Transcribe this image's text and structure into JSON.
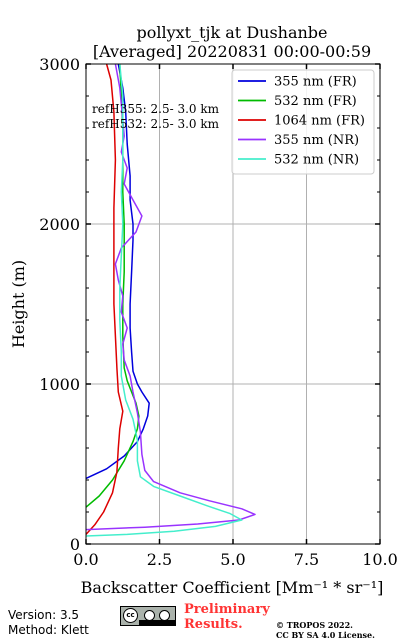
{
  "chart_data": {
    "type": "line",
    "title": "pollyxt_tjk at Dushanbe",
    "subtitle": "[Averaged] 20220831 00:00-00:59",
    "xlabel": "Backscatter Coefficient [Mm⁻¹ * sr⁻¹]",
    "ylabel": "Height (m)",
    "xlim": [
      0,
      10
    ],
    "ylim": [
      0,
      3000
    ],
    "xticks": [
      0,
      2.5,
      5,
      7.5,
      10
    ],
    "xtick_labels": [
      "0.0",
      "2.5",
      "5.0",
      "7.5",
      "10.0"
    ],
    "yticks": [
      0,
      1000,
      2000,
      3000
    ],
    "ytick_labels": [
      "0",
      "1000",
      "2000",
      "3000"
    ],
    "grid": true,
    "legend_position": "top-right",
    "annotations": [
      "refH355:  2.5- 3.0 km",
      "refH532:  2.5- 3.0 km"
    ],
    "series": [
      {
        "name": "355 nm (FR)",
        "color": "#0000dd",
        "points": [
          [
            0,
            410
          ],
          [
            0.7,
            470
          ],
          [
            1.3,
            550
          ],
          [
            1.75,
            640
          ],
          [
            1.95,
            720
          ],
          [
            2.1,
            800
          ],
          [
            2.15,
            880
          ],
          [
            1.9,
            950
          ],
          [
            1.75,
            1000
          ],
          [
            1.6,
            1080
          ],
          [
            1.55,
            1200
          ],
          [
            1.5,
            1350
          ],
          [
            1.5,
            1500
          ],
          [
            1.55,
            1700
          ],
          [
            1.6,
            1900
          ],
          [
            1.6,
            2000
          ],
          [
            1.5,
            2150
          ],
          [
            1.5,
            2300
          ],
          [
            1.4,
            2500
          ],
          [
            1.35,
            2700
          ],
          [
            1.25,
            2850
          ],
          [
            1.1,
            3000
          ]
        ]
      },
      {
        "name": "532 nm (FR)",
        "color": "#00bb00",
        "points": [
          [
            0,
            230
          ],
          [
            0.45,
            300
          ],
          [
            0.9,
            400
          ],
          [
            1.3,
            520
          ],
          [
            1.6,
            640
          ],
          [
            1.75,
            720
          ],
          [
            1.8,
            800
          ],
          [
            1.7,
            880
          ],
          [
            1.55,
            950
          ],
          [
            1.4,
            1020
          ],
          [
            1.3,
            1100
          ],
          [
            1.25,
            1300
          ],
          [
            1.25,
            1500
          ],
          [
            1.3,
            1700
          ],
          [
            1.3,
            1900
          ],
          [
            1.3,
            2000
          ],
          [
            1.25,
            2200
          ],
          [
            1.25,
            2400
          ],
          [
            1.25,
            2600
          ],
          [
            1.2,
            2800
          ],
          [
            1.15,
            3000
          ]
        ]
      },
      {
        "name": "1064 nm (FR)",
        "color": "#dd0000",
        "points": [
          [
            0,
            60
          ],
          [
            0.3,
            120
          ],
          [
            0.6,
            200
          ],
          [
            0.9,
            320
          ],
          [
            1.05,
            450
          ],
          [
            1.1,
            600
          ],
          [
            1.15,
            720
          ],
          [
            1.25,
            830
          ],
          [
            1.1,
            950
          ],
          [
            1.05,
            1100
          ],
          [
            1.0,
            1300
          ],
          [
            0.95,
            1500
          ],
          [
            0.95,
            1800
          ],
          [
            0.95,
            2100
          ],
          [
            1.0,
            2400
          ],
          [
            0.95,
            2700
          ],
          [
            0.85,
            2900
          ],
          [
            0.7,
            3000
          ]
        ]
      },
      {
        "name": "355 nm (NR)",
        "color": "#9933ff",
        "points": [
          [
            0,
            90
          ],
          [
            2.0,
            105
          ],
          [
            3.8,
            125
          ],
          [
            5.2,
            150
          ],
          [
            5.75,
            185
          ],
          [
            5.3,
            220
          ],
          [
            4.2,
            270
          ],
          [
            3.2,
            320
          ],
          [
            2.3,
            390
          ],
          [
            2.0,
            460
          ],
          [
            1.9,
            560
          ],
          [
            1.85,
            700
          ],
          [
            1.75,
            820
          ],
          [
            1.6,
            950
          ],
          [
            1.5,
            1050
          ],
          [
            1.3,
            1150
          ],
          [
            1.25,
            1250
          ],
          [
            1.4,
            1350
          ],
          [
            1.2,
            1450
          ],
          [
            1.25,
            1550
          ],
          [
            1.1,
            1650
          ],
          [
            1.0,
            1750
          ],
          [
            1.2,
            1850
          ],
          [
            1.7,
            1950
          ],
          [
            1.9,
            2050
          ],
          [
            1.6,
            2150
          ],
          [
            1.3,
            2250
          ],
          [
            1.4,
            2350
          ],
          [
            1.2,
            2450
          ],
          [
            1.3,
            2550
          ],
          [
            1.25,
            2650
          ],
          [
            1.2,
            2750
          ],
          [
            1.15,
            2850
          ],
          [
            1.05,
            2950
          ],
          [
            1.0,
            3000
          ]
        ]
      },
      {
        "name": "532 nm (NR)",
        "color": "#44eecc",
        "points": [
          [
            0,
            50
          ],
          [
            1.4,
            60
          ],
          [
            3.0,
            80
          ],
          [
            4.4,
            110
          ],
          [
            5.3,
            150
          ],
          [
            4.9,
            190
          ],
          [
            4.1,
            240
          ],
          [
            3.2,
            300
          ],
          [
            2.3,
            360
          ],
          [
            1.85,
            420
          ],
          [
            1.75,
            520
          ],
          [
            1.75,
            650
          ],
          [
            1.6,
            780
          ],
          [
            1.35,
            900
          ],
          [
            1.2,
            1050
          ],
          [
            1.2,
            1200
          ],
          [
            1.15,
            1400
          ],
          [
            1.15,
            1600
          ],
          [
            1.2,
            1800
          ],
          [
            1.25,
            2000
          ],
          [
            1.2,
            2200
          ],
          [
            1.25,
            2400
          ],
          [
            1.25,
            2600
          ],
          [
            1.25,
            2800
          ],
          [
            1.15,
            3000
          ]
        ]
      }
    ]
  },
  "footer": {
    "version": "Version: 3.5",
    "method": "Method: Klett",
    "preliminary_line1": "Preliminary",
    "preliminary_line2": "Results.",
    "copyright_line1": "© TROPOS 2022.",
    "copyright_line2": "CC BY SA 4.0 License.",
    "cc_badge_text": "cc"
  },
  "colors": {
    "grid": "#b0b0b0",
    "preliminary": "#ff3333"
  }
}
